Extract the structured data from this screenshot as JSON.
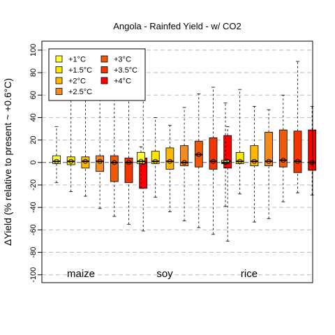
{
  "chart_data": {
    "type": "box",
    "title": "Angola - Rainfed Yield - w/ CO2",
    "ylabel": "ΔYield (% relative to present ~ +0.6°C)",
    "ylim": [
      -107,
      108
    ],
    "yticks": [
      100,
      80,
      60,
      40,
      20,
      0,
      -20,
      -40,
      -60,
      -80,
      -100
    ],
    "grid": true,
    "legend_position": "top-left",
    "groups": [
      "maize",
      "soy",
      "rice"
    ],
    "series": [
      {
        "name": "+1°C",
        "color": "#ffff33"
      },
      {
        "name": "+1.5°C",
        "color": "#ffe600"
      },
      {
        "name": "+2°C",
        "color": "#ffb700"
      },
      {
        "name": "+2.5°C",
        "color": "#f58a1f"
      },
      {
        "name": "+3°C",
        "color": "#ee5a0a"
      },
      {
        "name": "+3.5°C",
        "color": "#f33500"
      },
      {
        "name": "+4°C",
        "color": "#ff0000"
      }
    ],
    "boxes": [
      {
        "group": "maize",
        "series": 0,
        "whisker_low": -18,
        "q1": -1,
        "median": 1,
        "q3": 6,
        "whisker_high": 32
      },
      {
        "group": "maize",
        "series": 1,
        "whisker_low": -26,
        "q1": -2,
        "median": 1,
        "q3": 5,
        "whisker_high": 60
      },
      {
        "group": "maize",
        "series": 2,
        "whisker_low": -30,
        "q1": -5,
        "median": 1,
        "q3": 5,
        "whisker_high": 60
      },
      {
        "group": "maize",
        "series": 3,
        "whisker_low": -41,
        "q1": -8,
        "median": 1,
        "q3": 6,
        "whisker_high": 60
      },
      {
        "group": "maize",
        "series": 4,
        "whisker_low": -48,
        "q1": -17,
        "median": 0,
        "q3": 6,
        "whisker_high": 60
      },
      {
        "group": "maize",
        "series": 5,
        "whisker_low": -55,
        "q1": -18,
        "median": 0,
        "q3": 4,
        "whisker_high": 60
      },
      {
        "group": "maize",
        "series": 6,
        "whisker_low": -61,
        "q1": -23,
        "median": 0,
        "q3": 4,
        "whisker_high": 60
      },
      {
        "group": "soy",
        "series": 0,
        "whisker_low": -23,
        "q1": -1,
        "median": 1,
        "q3": 9,
        "whisker_high": 14
      },
      {
        "group": "soy",
        "series": 1,
        "whisker_low": -31,
        "q1": -1,
        "median": 1,
        "q3": 10,
        "whisker_high": 40
      },
      {
        "group": "soy",
        "series": 2,
        "whisker_low": -44,
        "q1": -6,
        "median": 1,
        "q3": 13,
        "whisker_high": 33
      },
      {
        "group": "soy",
        "series": 3,
        "whisker_low": -52,
        "q1": -3,
        "median": 0,
        "q3": 15,
        "whisker_high": 49
      },
      {
        "group": "soy",
        "series": 4,
        "whisker_low": -58,
        "q1": -4,
        "median": 7,
        "q3": 19,
        "whisker_high": 61
      },
      {
        "group": "soy",
        "series": 5,
        "whisker_low": -64,
        "q1": -6,
        "median": 1,
        "q3": 22,
        "whisker_high": 67
      },
      {
        "group": "soy",
        "series": 6,
        "whisker_low": -70,
        "q1": -5,
        "median": 1,
        "q3": 24,
        "whisker_high": 32
      },
      {
        "group": "rice",
        "series": 0,
        "whisker_low": -39,
        "q1": -1,
        "median": 0,
        "q3": 2,
        "whisker_high": 53
      },
      {
        "group": "rice",
        "series": 1,
        "whisker_low": -28,
        "q1": -1,
        "median": 1,
        "q3": 9,
        "whisker_high": 65
      },
      {
        "group": "rice",
        "series": 2,
        "whisker_low": -53,
        "q1": -3,
        "median": 1,
        "q3": 15,
        "whisker_high": 50
      },
      {
        "group": "rice",
        "series": 3,
        "whisker_low": -50,
        "q1": -3,
        "median": 1,
        "q3": 27,
        "whisker_high": 47
      },
      {
        "group": "rice",
        "series": 4,
        "whisker_low": -35,
        "q1": -4,
        "median": 2,
        "q3": 29,
        "whisker_high": 60
      },
      {
        "group": "rice",
        "series": 5,
        "whisker_low": -27,
        "q1": -9,
        "median": 1,
        "q3": 28,
        "whisker_high": 90
      },
      {
        "group": "rice",
        "series": 6,
        "whisker_low": -29,
        "q1": -7,
        "median": 0,
        "q3": 29,
        "whisker_high": 50
      }
    ]
  }
}
